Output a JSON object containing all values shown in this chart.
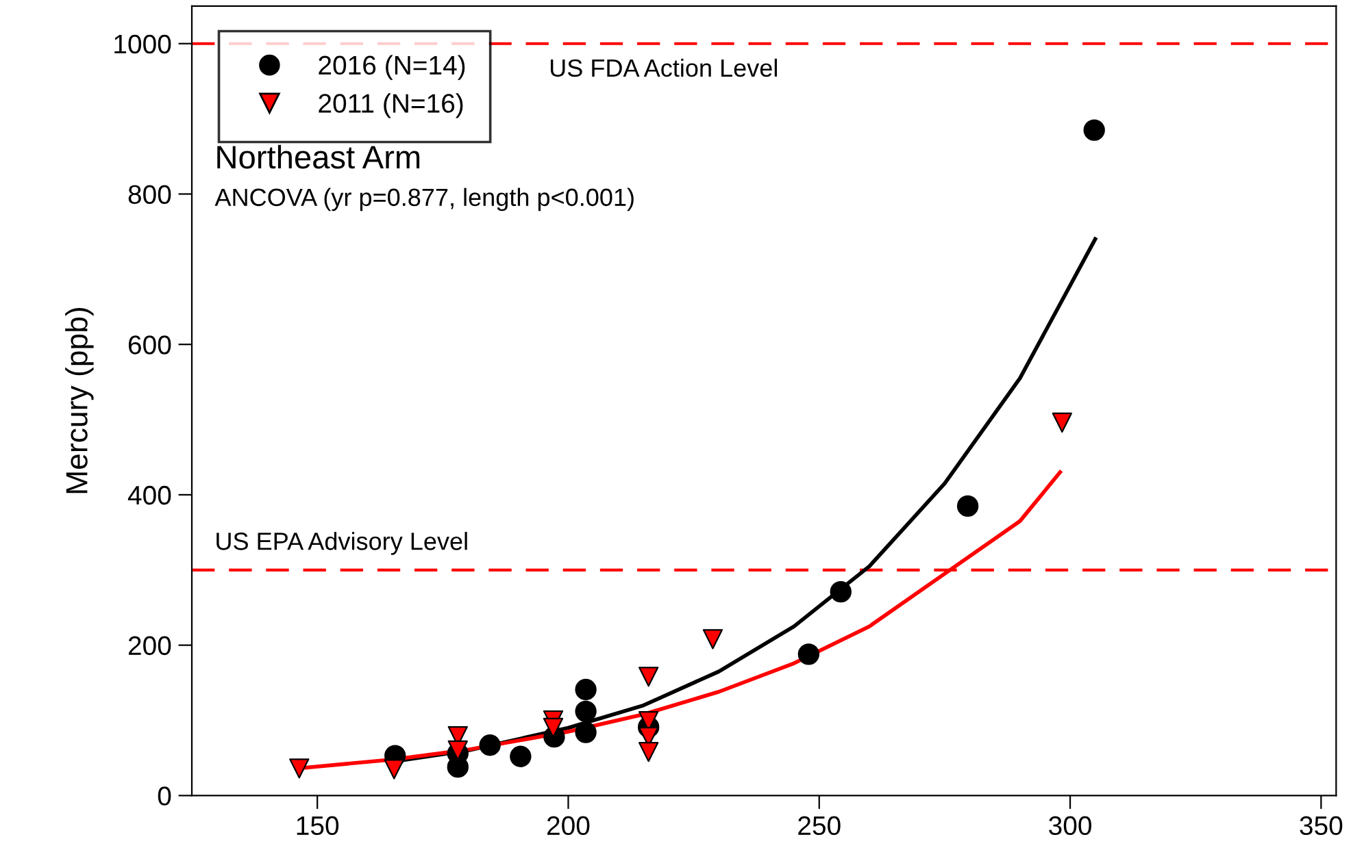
{
  "chart_data": {
    "type": "scatter",
    "ylabel": "Mercury (ppb)",
    "annotations": [
      "Northeast Arm",
      "ANCOVA (yr p=0.877, length p<0.001)"
    ],
    "xlim": [
      125,
      353
    ],
    "ylim": [
      0,
      1050
    ],
    "xticks": [
      150,
      200,
      250,
      300,
      350
    ],
    "yticks": [
      0,
      200,
      400,
      600,
      800,
      1000
    ],
    "grid": false,
    "legend": "top left",
    "series": [
      {
        "name": "2016 (N=14)",
        "marker": "circle",
        "color": "#000000",
        "x": [
          165.5,
          178,
          178,
          184.4,
          190.5,
          197.2,
          203.5,
          203.5,
          203.5,
          216,
          247.9,
          254.3,
          279.6,
          304.8
        ],
        "values": [
          53,
          38,
          56,
          67,
          52,
          78,
          141,
          112,
          84,
          91,
          188,
          271,
          385,
          885
        ]
      },
      {
        "name": "2011 (N=16)",
        "marker": "triangle",
        "color": "#ff0000",
        "x": [
          146.4,
          165.3,
          178,
          178,
          197,
          197,
          216,
          216,
          216,
          216,
          228.8,
          298.4
        ],
        "values": [
          36,
          35,
          79,
          60,
          100,
          90,
          158,
          99,
          78,
          58,
          208,
          496
        ]
      },
      {
        "type": "line",
        "color": "#000000",
        "line_style": "solid",
        "marker": "none",
        "x": [
          165,
          180,
          200,
          215,
          230,
          245,
          260,
          275,
          290,
          305
        ],
        "values": [
          45,
          60,
          90,
          120,
          165,
          225,
          305,
          415,
          555,
          740
        ]
      },
      {
        "type": "line",
        "color": "#ff0000",
        "line_style": "solid",
        "marker": "none",
        "x": [
          146,
          165,
          180,
          200,
          215,
          230,
          245,
          260,
          275,
          290,
          298
        ],
        "values": [
          36,
          48,
          61,
          85,
          108,
          138,
          176,
          225,
          295,
          365,
          430
        ]
      }
    ],
    "ref_lines": [
      {
        "axis": "y",
        "value": 1000,
        "label": "US FDA Action Level",
        "color": "#ff0000",
        "line_style": "dashed"
      },
      {
        "axis": "y",
        "value": 300,
        "label": "US EPA Advisory Level",
        "color": "#ff0000",
        "line_style": "dashed"
      }
    ]
  }
}
